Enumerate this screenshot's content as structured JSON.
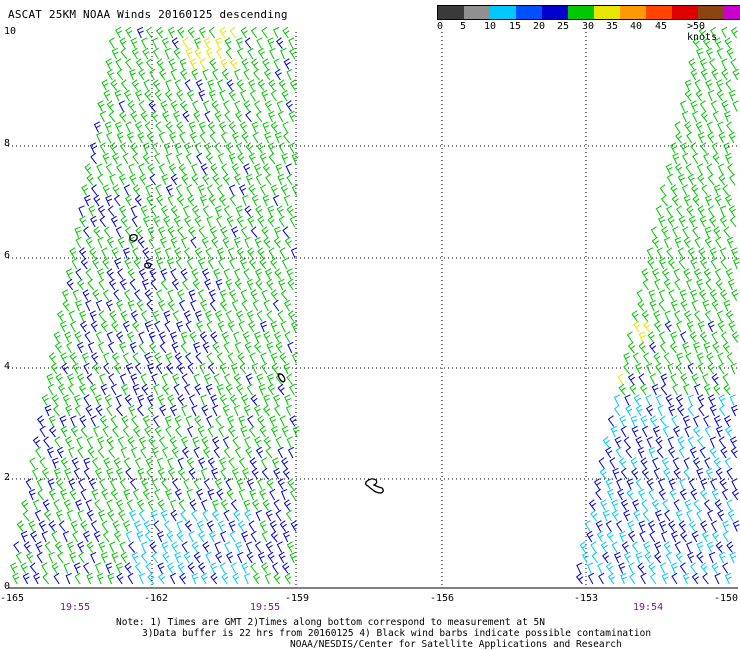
{
  "title": "ASCAT 25KM NOAA Winds 20160125 descending",
  "legend": {
    "units": ">50 knots",
    "ticks": [
      "0",
      "5",
      "10",
      "15",
      "20",
      "25",
      "30",
      "35",
      "40",
      "45"
    ],
    "colors": [
      "#3a3a3a",
      "#909090",
      "#00c8ff",
      "#0050ff",
      "#0000cc",
      "#00c800",
      "#e6e600",
      "#ff9900",
      "#ff4400",
      "#e00000",
      "#8b4513",
      "#cc00cc",
      "#4b0082"
    ]
  },
  "axes": {
    "lat_labels": [
      "10",
      "8",
      "6",
      "4",
      "2",
      "0"
    ],
    "lon_labels": [
      "-165",
      "-162",
      "-159",
      "-156",
      "-153",
      "-150"
    ]
  },
  "pass_times": [
    "19:55",
    "19:55",
    "19:54"
  ],
  "notes": [
    "Note: 1) Times are GMT 2)Times along bottom correspond to measurement at 5N",
    "3)Data buffer is 22 hrs from 20160125 4) Black wind barbs indicate possible contamination",
    "NOAA/NESDIS/Center for Satellite Applications and Research"
  ],
  "wind_colors": {
    "calm": "#00c8ff",
    "light": "#0000cc",
    "moderate": "#00c800",
    "strong": "#e6e600",
    "contaminated": "#000000"
  }
}
